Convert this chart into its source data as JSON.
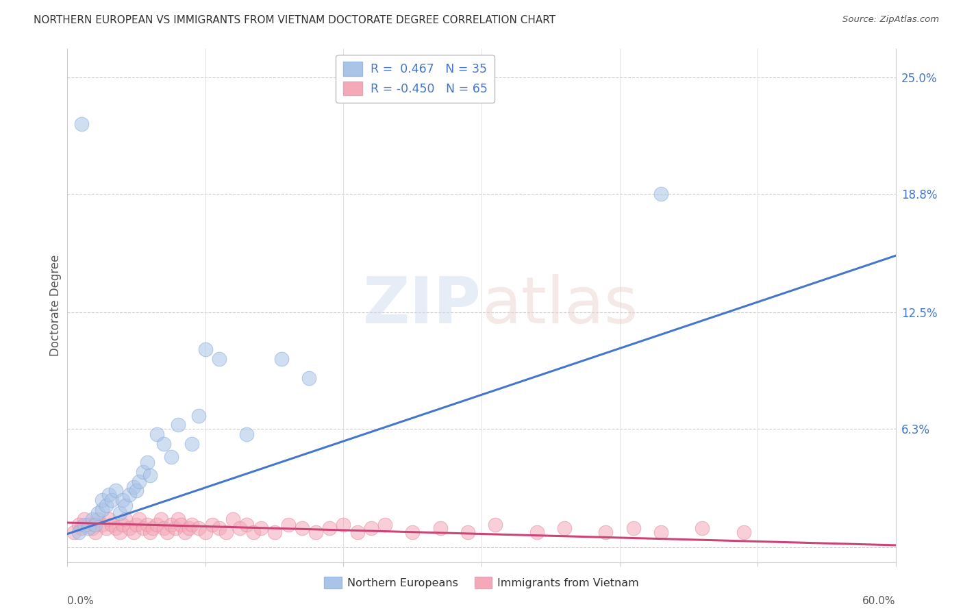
{
  "title": "NORTHERN EUROPEAN VS IMMIGRANTS FROM VIETNAM DOCTORATE DEGREE CORRELATION CHART",
  "source": "Source: ZipAtlas.com",
  "ylabel": "Doctorate Degree",
  "yticks": [
    0.0,
    0.063,
    0.125,
    0.188,
    0.25
  ],
  "ytick_labels": [
    "",
    "6.3%",
    "12.5%",
    "18.8%",
    "25.0%"
  ],
  "xmin": 0.0,
  "xmax": 0.6,
  "ymin": -0.008,
  "ymax": 0.265,
  "blue_R": "0.467",
  "blue_N": "35",
  "pink_R": "-0.450",
  "pink_N": "65",
  "blue_color": "#aac4e8",
  "pink_color": "#f4a8b8",
  "blue_line_color": "#4477cc",
  "pink_line_color": "#cc4477",
  "legend_label_blue": "Northern Europeans",
  "legend_label_pink": "Immigrants from Vietnam",
  "blue_line_x": [
    0.0,
    0.6
  ],
  "blue_line_y": [
    0.007,
    0.155
  ],
  "pink_line_x": [
    0.0,
    0.6
  ],
  "pink_line_y": [
    0.013,
    0.001
  ],
  "blue_scatter_x": [
    0.008,
    0.012,
    0.015,
    0.018,
    0.02,
    0.022,
    0.025,
    0.025,
    0.028,
    0.03,
    0.032,
    0.035,
    0.038,
    0.04,
    0.042,
    0.045,
    0.048,
    0.05,
    0.052,
    0.055,
    0.058,
    0.06,
    0.065,
    0.07,
    0.075,
    0.08,
    0.09,
    0.095,
    0.1,
    0.11,
    0.13,
    0.155,
    0.175,
    0.43,
    0.01
  ],
  "blue_scatter_y": [
    0.008,
    0.012,
    0.01,
    0.015,
    0.012,
    0.018,
    0.02,
    0.025,
    0.022,
    0.028,
    0.025,
    0.03,
    0.018,
    0.025,
    0.022,
    0.028,
    0.032,
    0.03,
    0.035,
    0.04,
    0.045,
    0.038,
    0.06,
    0.055,
    0.048,
    0.065,
    0.055,
    0.07,
    0.105,
    0.1,
    0.06,
    0.1,
    0.09,
    0.188,
    0.225
  ],
  "pink_scatter_x": [
    0.005,
    0.008,
    0.01,
    0.012,
    0.015,
    0.018,
    0.02,
    0.022,
    0.025,
    0.028,
    0.03,
    0.032,
    0.035,
    0.038,
    0.04,
    0.042,
    0.045,
    0.048,
    0.05,
    0.052,
    0.055,
    0.058,
    0.06,
    0.062,
    0.065,
    0.068,
    0.07,
    0.072,
    0.075,
    0.078,
    0.08,
    0.082,
    0.085,
    0.088,
    0.09,
    0.095,
    0.1,
    0.105,
    0.11,
    0.115,
    0.12,
    0.125,
    0.13,
    0.135,
    0.14,
    0.15,
    0.16,
    0.17,
    0.18,
    0.19,
    0.2,
    0.21,
    0.22,
    0.23,
    0.25,
    0.27,
    0.29,
    0.31,
    0.34,
    0.36,
    0.39,
    0.41,
    0.43,
    0.46,
    0.49
  ],
  "pink_scatter_y": [
    0.008,
    0.012,
    0.01,
    0.015,
    0.012,
    0.01,
    0.008,
    0.015,
    0.012,
    0.01,
    0.015,
    0.012,
    0.01,
    0.008,
    0.012,
    0.015,
    0.01,
    0.008,
    0.012,
    0.015,
    0.01,
    0.012,
    0.008,
    0.01,
    0.012,
    0.015,
    0.01,
    0.008,
    0.012,
    0.01,
    0.015,
    0.012,
    0.008,
    0.01,
    0.012,
    0.01,
    0.008,
    0.012,
    0.01,
    0.008,
    0.015,
    0.01,
    0.012,
    0.008,
    0.01,
    0.008,
    0.012,
    0.01,
    0.008,
    0.01,
    0.012,
    0.008,
    0.01,
    0.012,
    0.008,
    0.01,
    0.008,
    0.012,
    0.008,
    0.01,
    0.008,
    0.01,
    0.008,
    0.01,
    0.008
  ]
}
